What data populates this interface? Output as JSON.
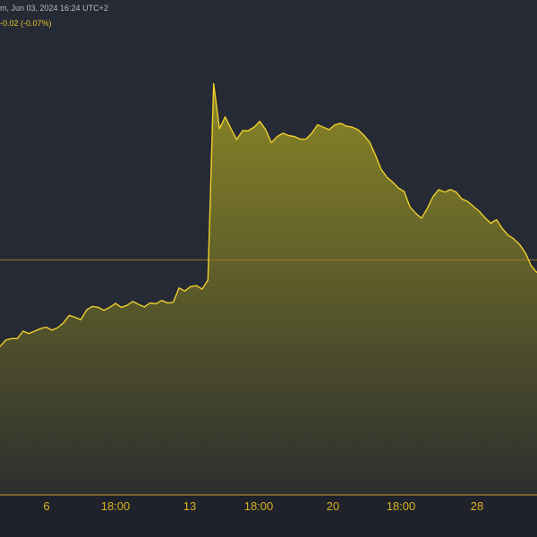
{
  "header": {
    "title": "m, Jun 03, 2024 16:24 UTC+2",
    "change": "-0.02 (-0.07%)"
  },
  "colors": {
    "background": "#262a35",
    "axis_band": "#1f222b",
    "line": "#f0d02c",
    "area_top": "#8a8626",
    "area_bottom": "#2c2f2f",
    "reference_line": "#a9822a",
    "axis_line": "#c79b2a",
    "tick_text": "#d9b21f"
  },
  "chart_data": {
    "type": "area",
    "title": "",
    "xlabel": "",
    "ylabel": "",
    "x_tick_labels": [
      "6",
      "18:00",
      "13",
      "18:00",
      "20",
      "18:00",
      "28"
    ],
    "grid": false,
    "legend": "none",
    "ylim": [
      0,
      100
    ],
    "reference_line_value": 47.5,
    "series": [
      {
        "values": [
          30.0,
          31.3,
          31.6,
          31.6,
          33.1,
          32.6,
          33.1,
          33.6,
          33.9,
          33.3,
          33.8,
          34.8,
          36.3,
          35.9,
          35.4,
          37.4,
          38.1,
          37.9,
          37.3,
          37.9,
          38.7,
          37.9,
          38.3,
          39.1,
          38.5,
          38.0,
          38.8,
          38.6,
          39.3,
          38.8,
          38.9,
          41.8,
          41.2,
          42.1,
          42.3,
          41.6,
          43.4,
          83.1,
          74.0,
          76.4,
          74.0,
          71.8,
          73.6,
          73.6,
          74.3,
          75.5,
          73.8,
          71.2,
          72.4,
          73.1,
          72.6,
          72.4,
          71.9,
          71.9,
          73.1,
          74.8,
          74.3,
          73.8,
          74.8,
          75.1,
          74.5,
          74.3,
          73.8,
          72.7,
          71.3,
          68.7,
          65.8,
          64.2,
          63.2,
          62.0,
          61.3,
          58.2,
          56.9,
          55.9,
          57.9,
          60.3,
          61.7,
          61.2,
          61.7,
          61.2,
          59.8,
          59.3,
          58.3,
          57.3,
          56.0,
          54.9,
          55.6,
          53.8,
          52.5,
          51.7,
          50.6,
          48.9,
          46.3,
          44.9
        ]
      }
    ]
  }
}
